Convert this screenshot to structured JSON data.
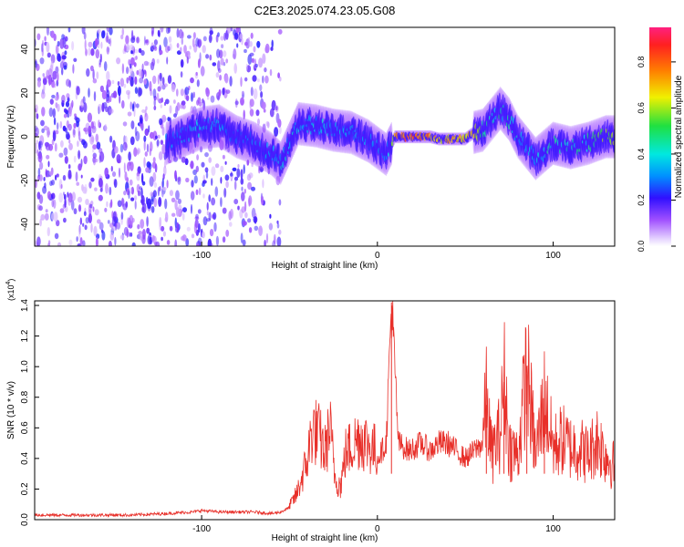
{
  "title": "C2E3.2025.074.23.05.G08",
  "chart_data": [
    {
      "type": "heatmap",
      "xlabel": "Height of straight line (km)",
      "ylabel": "Frequency (Hz)",
      "xlim": [
        -195,
        135
      ],
      "ylim": [
        -50,
        50
      ],
      "x_ticks": [
        -100,
        0,
        100
      ],
      "x_tick_labels": [
        "-100",
        "0",
        "100"
      ],
      "y_ticks": [
        -40,
        -20,
        0,
        20,
        40
      ],
      "y_tick_labels": [
        "-40",
        "-20",
        "0",
        "20",
        "40"
      ],
      "colorbar": {
        "label": "Normalized spectral amplitude",
        "range": [
          0.0,
          0.95
        ],
        "ticks": [
          0.0,
          0.2,
          0.4,
          0.6,
          0.8
        ],
        "tick_labels": [
          "0.0",
          "0.2",
          "0.4",
          "0.6",
          "0.8"
        ]
      },
      "ridge": {
        "x": [
          -120,
          -100,
          -90,
          -80,
          -70,
          -60,
          -55,
          -45,
          -35,
          -25,
          -15,
          -5,
          0,
          5,
          10,
          20,
          30,
          35,
          45,
          50,
          55,
          60,
          65,
          70,
          75,
          80,
          85,
          90,
          100,
          110,
          120,
          130,
          135
        ],
        "y": [
          -3,
          4,
          5,
          0,
          -3,
          -8,
          -12,
          6,
          5,
          3,
          2,
          -2,
          -5,
          -8,
          0,
          0,
          0,
          -1,
          -1,
          -1,
          2,
          3,
          8,
          13,
          8,
          0,
          -5,
          -10,
          -3,
          -5,
          -3,
          0,
          0
        ],
        "amplitude": [
          0.35,
          0.45,
          0.4,
          0.3,
          0.35,
          0.4,
          0.45,
          0.45,
          0.45,
          0.4,
          0.4,
          0.35,
          0.4,
          0.35,
          0.85,
          0.92,
          0.85,
          0.75,
          0.8,
          0.75,
          0.8,
          0.6,
          0.5,
          0.55,
          0.5,
          0.45,
          0.45,
          0.45,
          0.5,
          0.5,
          0.55,
          0.7,
          0.7
        ]
      }
    },
    {
      "type": "line",
      "xlabel": "Height of straight line (km)",
      "ylabel": "SNR (10 * v/v)",
      "y_scale_label": "(x10",
      "y_scale_exp": "4",
      "xlim": [
        -195,
        135
      ],
      "ylim": [
        0.0,
        1.43
      ],
      "x_ticks": [
        -100,
        0,
        100
      ],
      "x_tick_labels": [
        "-100",
        "0",
        "100"
      ],
      "y_ticks": [
        0.0,
        0.2,
        0.4,
        0.6,
        0.8,
        1.0,
        1.2,
        1.4
      ],
      "y_tick_labels": [
        "0.0",
        "0.2",
        "0.4",
        "0.6",
        "0.8",
        "1.0",
        "1.2",
        "1.4"
      ],
      "color": "#e8302a",
      "series": [
        {
          "x": [
            -195,
            -180,
            -160,
            -140,
            -120,
            -105,
            -100,
            -90,
            -80,
            -70,
            -60,
            -55,
            -50,
            -46,
            -43,
            -40,
            -37,
            -33,
            -30,
            -27,
            -24,
            -21,
            -18,
            -14,
            -10,
            -5,
            0,
            5,
            8,
            12,
            18,
            25,
            30,
            35,
            40,
            45,
            50,
            55,
            60,
            62,
            65,
            70,
            72,
            75,
            80,
            85,
            90,
            95,
            100,
            105,
            110,
            115,
            120,
            125,
            130,
            135
          ],
          "y": [
            0.03,
            0.03,
            0.03,
            0.03,
            0.04,
            0.05,
            0.06,
            0.05,
            0.05,
            0.05,
            0.04,
            0.05,
            0.08,
            0.15,
            0.25,
            0.35,
            0.55,
            0.5,
            0.4,
            0.55,
            0.25,
            0.2,
            0.4,
            0.45,
            0.5,
            0.45,
            0.4,
            0.5,
            1.42,
            0.5,
            0.45,
            0.5,
            0.45,
            0.5,
            0.5,
            0.45,
            0.4,
            0.45,
            0.5,
            0.75,
            0.4,
            0.55,
            0.9,
            0.45,
            0.4,
            0.95,
            0.4,
            0.75,
            0.45,
            0.5,
            0.45,
            0.45,
            0.4,
            0.5,
            0.4,
            0.33
          ]
        }
      ]
    }
  ]
}
